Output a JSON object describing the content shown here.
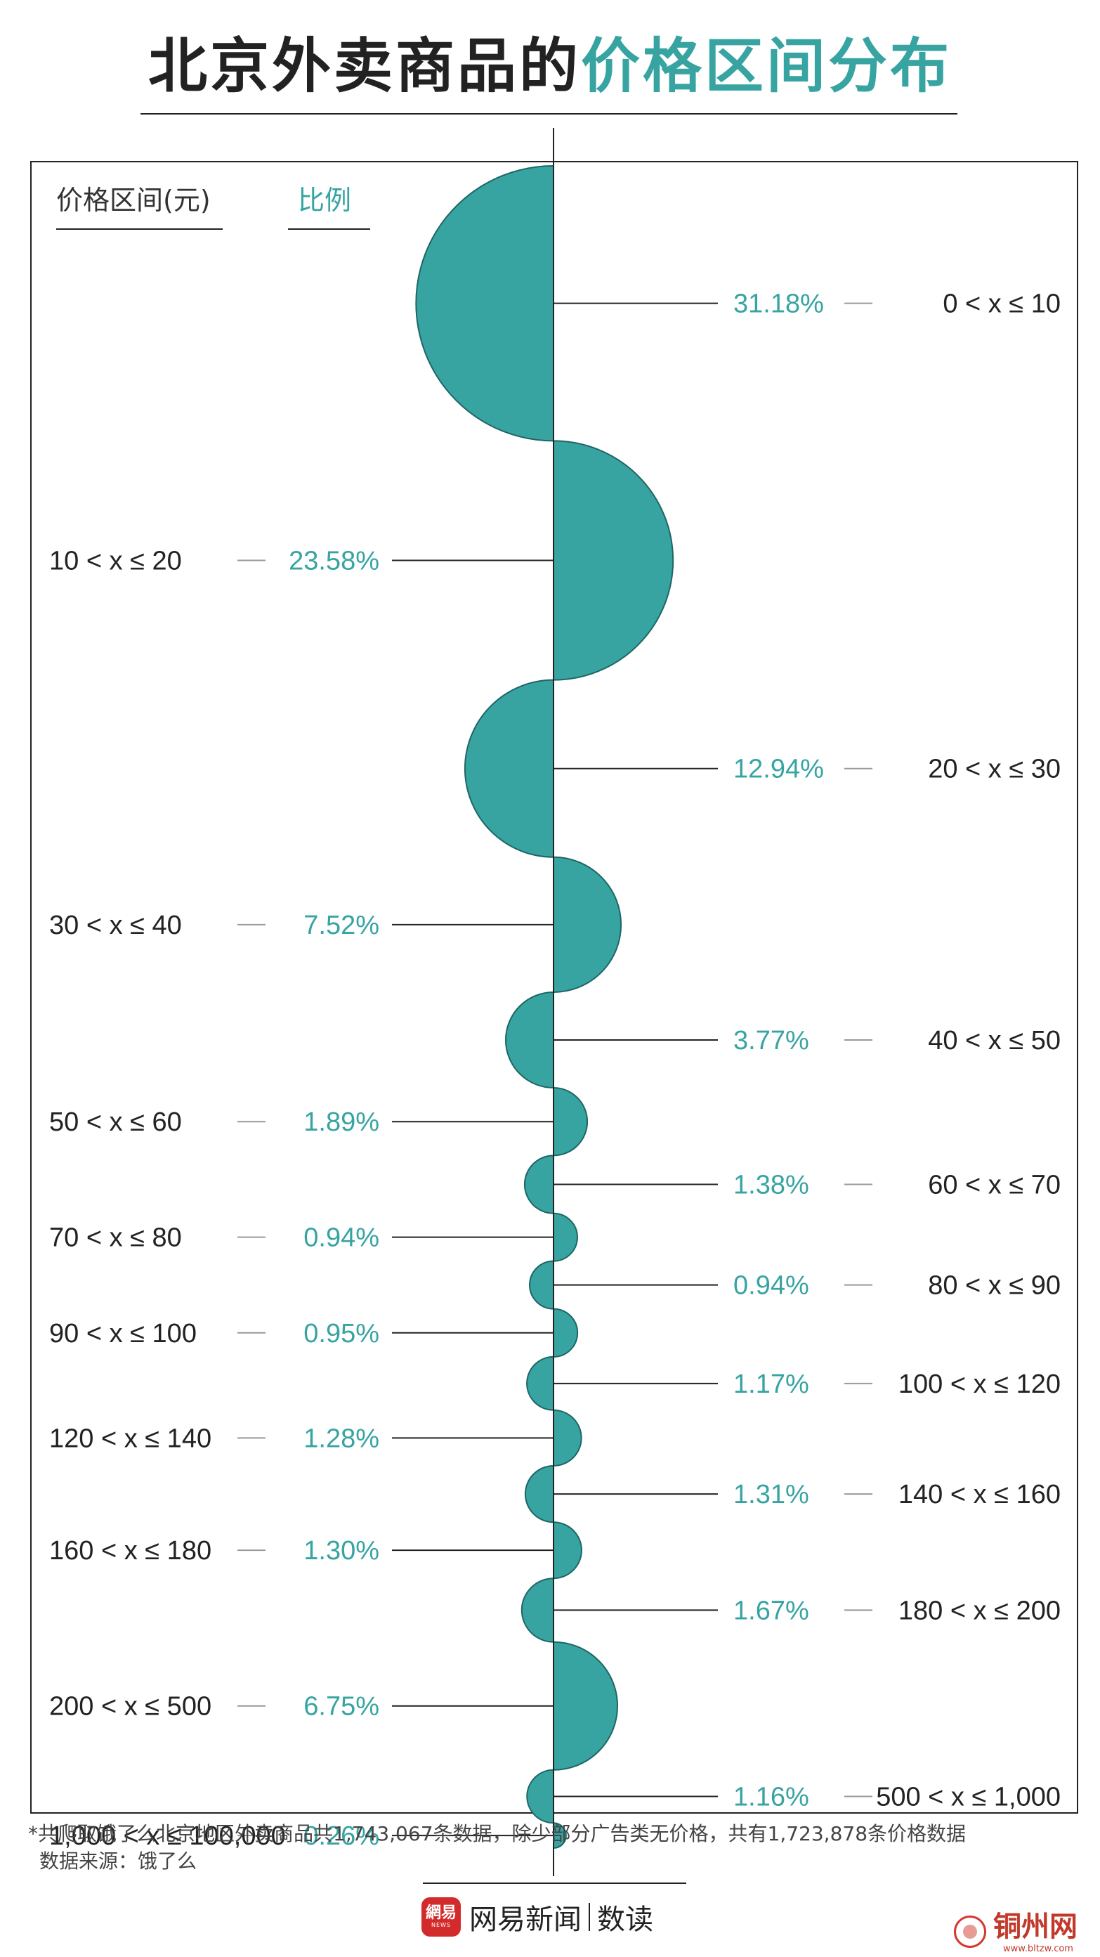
{
  "title": {
    "part1": "北京外卖商品的",
    "part2": "价格区间分布"
  },
  "colors": {
    "accent": "#37A4A2",
    "accent_dark": "#1E6665",
    "text": "#222222"
  },
  "chart_data": {
    "type": "bar",
    "header": {
      "range_label": "价格区间(元)",
      "ratio_label": "比例"
    },
    "categories": [
      "0 < x ≤ 10",
      "10 < x ≤ 20",
      "20 < x ≤ 30",
      "30 < x ≤ 40",
      "40 < x ≤ 50",
      "50 < x ≤ 60",
      "60 < x ≤ 70",
      "70 < x ≤ 80",
      "80 < x ≤ 90",
      "90 < x ≤ 100",
      "100 < x ≤ 120",
      "120 < x ≤ 140",
      "140 < x ≤ 160",
      "160 < x ≤ 180",
      "180 < x ≤ 200",
      "200 < x ≤ 500",
      "500 < x ≤ 1,000",
      "1,000 < x ≤ 100,000"
    ],
    "values": [
      31.18,
      23.58,
      12.94,
      7.52,
      3.77,
      1.89,
      1.38,
      0.94,
      0.94,
      0.95,
      1.17,
      1.28,
      1.31,
      1.3,
      1.67,
      6.75,
      1.16,
      0.26
    ],
    "value_labels": [
      "31.18%",
      "23.58%",
      "12.94%",
      "7.52%",
      "3.77%",
      "1.89%",
      "1.38%",
      "0.94%",
      "0.94%",
      "0.95%",
      "1.17%",
      "1.28%",
      "1.31%",
      "1.30%",
      "1.67%",
      "6.75%",
      "1.16%",
      "0.26%"
    ],
    "sides": [
      "left",
      "right",
      "left",
      "right",
      "left",
      "right",
      "left",
      "right",
      "left",
      "right",
      "left",
      "right",
      "left",
      "right",
      "left",
      "right",
      "left",
      "right"
    ],
    "unit": "%"
  },
  "footnote": {
    "note": "*共爬取饿了么北京地区外卖商品共1,743,067条数据，除少部分广告类无价格，共有1,723,878条价格数据",
    "source": "数据来源：饿了么"
  },
  "brand": {
    "logo": "網易",
    "logo_sub": "NEWS",
    "name": "网易新闻",
    "section": "数读"
  },
  "watermark": {
    "name": "铜州网",
    "url": "www.bltzw.com"
  }
}
